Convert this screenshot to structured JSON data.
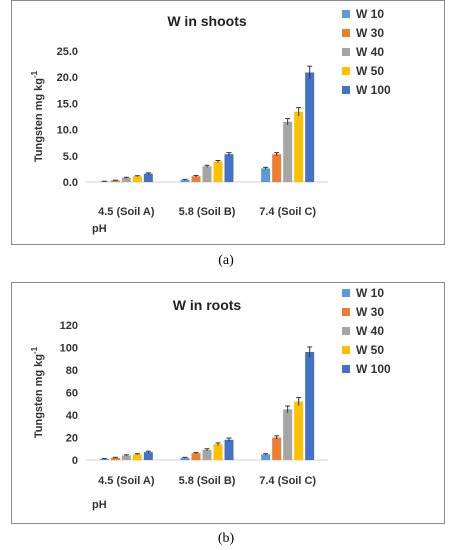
{
  "captions": [
    "(a)",
    "(b)"
  ],
  "chart_data": [
    {
      "type": "bar",
      "title": "W in shoots",
      "xlabel": "pH",
      "ylabel": "Tungsten mg kg",
      "ylabel_superscript": "-1",
      "categories": [
        "4.5 (Soil A)",
        "5.8 (Soil B)",
        "7.4 (Soil C)"
      ],
      "ylim": [
        0,
        25
      ],
      "yticks": [
        "0.0",
        "5.0",
        "10.0",
        "15.0",
        "20.0",
        "25.0"
      ],
      "yticks_values": [
        0,
        5,
        10,
        15,
        20,
        25
      ],
      "legend_position": "right",
      "grid": false,
      "series": [
        {
          "name": "W 10",
          "color": "#5b9bd5",
          "values": [
            0.1,
            0.4,
            2.6
          ]
        },
        {
          "name": "W 30",
          "color": "#ed7d31",
          "values": [
            0.3,
            1.1,
            5.3
          ]
        },
        {
          "name": "W 40",
          "color": "#a5a5a5",
          "values": [
            0.8,
            3.0,
            11.5
          ]
        },
        {
          "name": "W 50",
          "color": "#ffc000",
          "values": [
            1.1,
            3.9,
            13.4
          ]
        },
        {
          "name": "W 100",
          "color": "#4472c4",
          "values": [
            1.6,
            5.3,
            20.9
          ]
        }
      ],
      "errors": [
        [
          0.05,
          0.1,
          0.2
        ],
        [
          0.05,
          0.15,
          0.3
        ],
        [
          0.1,
          0.2,
          0.6
        ],
        [
          0.1,
          0.2,
          0.8
        ],
        [
          0.15,
          0.3,
          1.2
        ]
      ]
    },
    {
      "type": "bar",
      "title": "W in roots",
      "xlabel": "pH",
      "ylabel": "Tungsten mg kg",
      "ylabel_superscript": "-1",
      "categories": [
        "4.5 (Soil A)",
        "5.8 (Soil B)",
        "7.4 (Soil C)"
      ],
      "ylim": [
        0,
        120
      ],
      "yticks": [
        "0",
        "20",
        "40",
        "60",
        "80",
        "100",
        "120"
      ],
      "yticks_values": [
        0,
        20,
        40,
        60,
        80,
        100,
        120
      ],
      "legend_position": "right",
      "grid": false,
      "series": [
        {
          "name": "W 10",
          "color": "#5b9bd5",
          "values": [
            1,
            2,
            5
          ]
        },
        {
          "name": "W 30",
          "color": "#ed7d31",
          "values": [
            2,
            6,
            20
          ]
        },
        {
          "name": "W 40",
          "color": "#a5a5a5",
          "values": [
            4,
            9,
            45
          ]
        },
        {
          "name": "W 50",
          "color": "#ffc000",
          "values": [
            5,
            14,
            52
          ]
        },
        {
          "name": "W 100",
          "color": "#4472c4",
          "values": [
            7,
            18,
            96
          ]
        }
      ],
      "errors": [
        [
          0.3,
          0.4,
          0.6
        ],
        [
          0.4,
          0.6,
          1.5
        ],
        [
          0.6,
          1.0,
          3.0
        ],
        [
          0.6,
          1.2,
          3.5
        ],
        [
          0.8,
          1.5,
          4.5
        ]
      ]
    }
  ]
}
